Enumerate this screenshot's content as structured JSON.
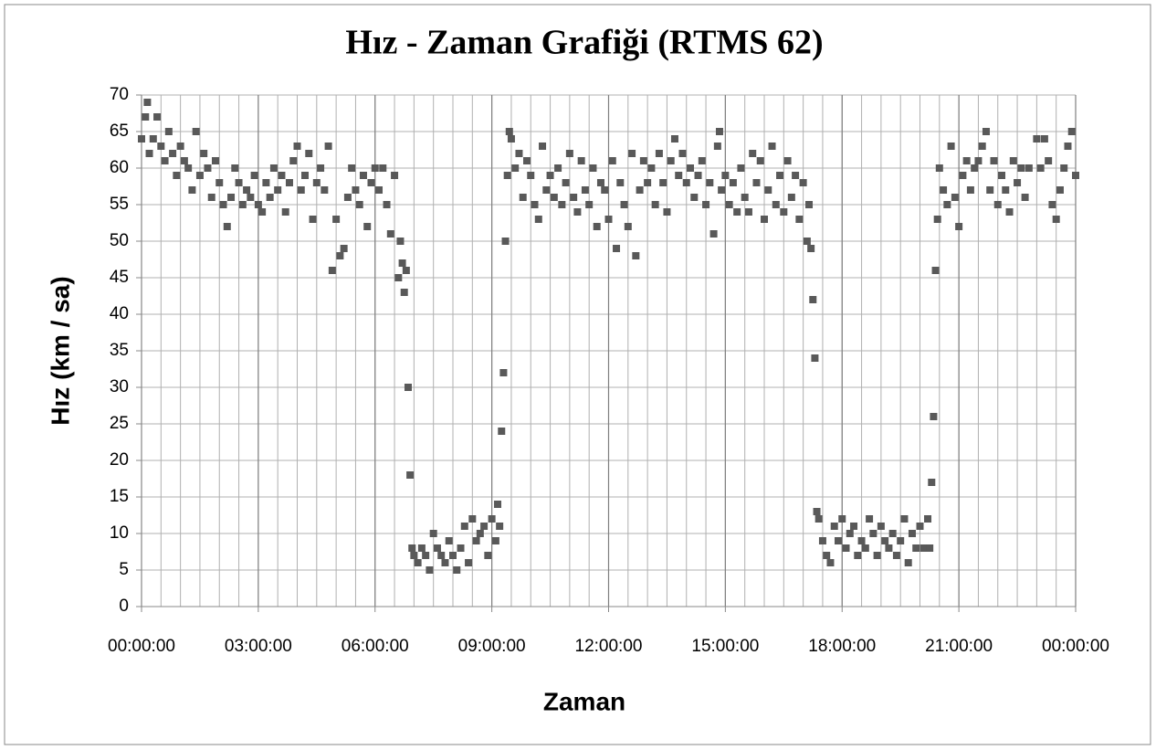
{
  "chart_data": {
    "type": "scatter",
    "title": "Hız - Zaman Grafiği (RTMS 62)",
    "x_label": "Zaman",
    "y_label": "Hız (km / sa)",
    "color": "#595959",
    "grid": true,
    "x_minor_grid": 0.5,
    "xlim": [
      0,
      24
    ],
    "ylim": [
      0,
      70
    ],
    "xticks": [
      {
        "value": 0,
        "label": "00:00:00"
      },
      {
        "value": 3,
        "label": "03:00:00"
      },
      {
        "value": 6,
        "label": "06:00:00"
      },
      {
        "value": 9,
        "label": "09:00:00"
      },
      {
        "value": 12,
        "label": "12:00:00"
      },
      {
        "value": 15,
        "label": "15:00:00"
      },
      {
        "value": 18,
        "label": "18:00:00"
      },
      {
        "value": 21,
        "label": "21:00:00"
      },
      {
        "value": 24,
        "label": "00:00:00"
      }
    ],
    "yticks": [
      0,
      5,
      10,
      15,
      20,
      25,
      30,
      35,
      40,
      45,
      50,
      55,
      60,
      65,
      70
    ],
    "x": [
      0.0,
      0.1,
      0.15,
      0.2,
      0.3,
      0.4,
      0.5,
      0.6,
      0.7,
      0.8,
      0.9,
      1.0,
      1.1,
      1.2,
      1.3,
      1.4,
      1.5,
      1.6,
      1.7,
      1.8,
      1.9,
      2.0,
      2.1,
      2.2,
      2.3,
      2.4,
      2.5,
      2.6,
      2.7,
      2.8,
      2.9,
      3.0,
      3.1,
      3.2,
      3.3,
      3.4,
      3.5,
      3.6,
      3.7,
      3.8,
      3.9,
      4.0,
      4.1,
      4.2,
      4.3,
      4.4,
      4.5,
      4.6,
      4.7,
      4.8,
      4.9,
      5.0,
      5.1,
      5.2,
      5.3,
      5.4,
      5.5,
      5.6,
      5.7,
      5.8,
      5.9,
      6.0,
      6.1,
      6.2,
      6.3,
      6.4,
      6.5,
      6.6,
      6.65,
      6.7,
      6.75,
      6.8,
      6.85,
      6.9,
      6.95,
      7.0,
      7.1,
      7.2,
      7.3,
      7.4,
      7.5,
      7.6,
      7.7,
      7.8,
      7.9,
      8.0,
      8.1,
      8.2,
      8.3,
      8.4,
      8.5,
      8.6,
      8.7,
      8.8,
      8.9,
      9.0,
      9.1,
      9.15,
      9.2,
      9.25,
      9.3,
      9.35,
      9.4,
      9.45,
      9.5,
      9.6,
      9.7,
      9.8,
      9.9,
      10.0,
      10.1,
      10.2,
      10.3,
      10.4,
      10.5,
      10.6,
      10.7,
      10.8,
      10.9,
      11.0,
      11.1,
      11.2,
      11.3,
      11.4,
      11.5,
      11.6,
      11.7,
      11.8,
      11.9,
      12.0,
      12.1,
      12.2,
      12.3,
      12.4,
      12.5,
      12.6,
      12.7,
      12.8,
      12.9,
      13.0,
      13.1,
      13.2,
      13.3,
      13.4,
      13.5,
      13.6,
      13.7,
      13.8,
      13.9,
      14.0,
      14.1,
      14.2,
      14.3,
      14.4,
      14.5,
      14.6,
      14.7,
      14.8,
      14.85,
      14.9,
      15.0,
      15.1,
      15.2,
      15.3,
      15.4,
      15.5,
      15.6,
      15.7,
      15.8,
      15.9,
      16.0,
      16.1,
      16.2,
      16.3,
      16.4,
      16.5,
      16.6,
      16.7,
      16.8,
      16.9,
      17.0,
      17.1,
      17.15,
      17.2,
      17.25,
      17.3,
      17.35,
      17.4,
      17.5,
      17.6,
      17.7,
      17.8,
      17.9,
      18.0,
      18.1,
      18.2,
      18.3,
      18.4,
      18.5,
      18.6,
      18.7,
      18.8,
      18.9,
      19.0,
      19.1,
      19.2,
      19.3,
      19.4,
      19.5,
      19.6,
      19.7,
      19.8,
      19.9,
      20.0,
      20.1,
      20.2,
      20.25,
      20.3,
      20.35,
      20.4,
      20.45,
      20.5,
      20.6,
      20.7,
      20.8,
      20.9,
      21.0,
      21.1,
      21.2,
      21.3,
      21.4,
      21.5,
      21.6,
      21.7,
      21.8,
      21.9,
      22.0,
      22.1,
      22.2,
      22.3,
      22.4,
      22.5,
      22.6,
      22.7,
      22.8,
      23.0,
      23.1,
      23.2,
      23.3,
      23.4,
      23.5,
      23.6,
      23.7,
      23.8,
      23.9,
      24.0
    ],
    "values": [
      64,
      67,
      69,
      62,
      64,
      67,
      63,
      61,
      65,
      62,
      59,
      63,
      61,
      60,
      57,
      65,
      59,
      62,
      60,
      56,
      61,
      58,
      55,
      52,
      56,
      60,
      58,
      55,
      57,
      56,
      59,
      55,
      54,
      58,
      56,
      60,
      57,
      59,
      54,
      58,
      61,
      63,
      57,
      59,
      62,
      53,
      58,
      60,
      57,
      63,
      46,
      53,
      48,
      49,
      56,
      60,
      57,
      55,
      59,
      52,
      58,
      60,
      57,
      60,
      55,
      51,
      59,
      45,
      50,
      47,
      43,
      46,
      30,
      18,
      8,
      7,
      6,
      8,
      7,
      5,
      10,
      8,
      7,
      6,
      9,
      7,
      5,
      8,
      11,
      6,
      12,
      9,
      10,
      11,
      7,
      12,
      9,
      14,
      11,
      24,
      32,
      50,
      59,
      65,
      64,
      60,
      62,
      56,
      61,
      59,
      55,
      53,
      63,
      57,
      59,
      56,
      60,
      55,
      58,
      62,
      56,
      54,
      61,
      57,
      55,
      60,
      52,
      58,
      57,
      53,
      61,
      49,
      58,
      55,
      52,
      62,
      48,
      57,
      61,
      58,
      60,
      55,
      62,
      58,
      54,
      61,
      64,
      59,
      62,
      58,
      60,
      56,
      59,
      61,
      55,
      58,
      51,
      63,
      65,
      57,
      59,
      55,
      58,
      54,
      60,
      56,
      54,
      62,
      58,
      61,
      53,
      57,
      63,
      55,
      59,
      54,
      61,
      56,
      59,
      53,
      58,
      50,
      55,
      49,
      42,
      34,
      13,
      12,
      9,
      7,
      6,
      11,
      9,
      12,
      8,
      10,
      11,
      7,
      9,
      8,
      12,
      10,
      7,
      11,
      9,
      8,
      10,
      7,
      9,
      12,
      6,
      10,
      8,
      11,
      8,
      12,
      8,
      17,
      26,
      46,
      53,
      60,
      57,
      55,
      63,
      56,
      52,
      59,
      61,
      57,
      60,
      61,
      63,
      65,
      57,
      61,
      55,
      59,
      57,
      54,
      61,
      58,
      60,
      56,
      60,
      64,
      60,
      64,
      61,
      55,
      53,
      57,
      60,
      63,
      65,
      59
    ]
  }
}
